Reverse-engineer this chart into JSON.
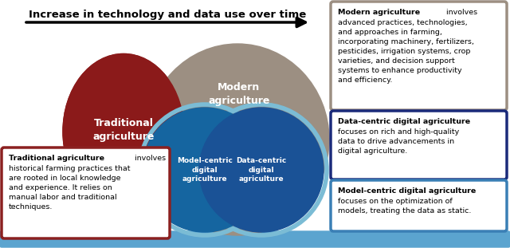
{
  "title_arrow": "Increase in technology and data use over time",
  "bg_color": "#ffffff",
  "trad_color": "#8B1A1A",
  "modern_color": "#9C8F82",
  "model_color": "#1565A0",
  "data_color": "#1A5296",
  "blue_outline_color": "#7BBCD5",
  "trad_label": "Traditional\nagriculture",
  "modern_label": "Modern\nagriculture",
  "model_label": "Model-centric\ndigital\nagriculture",
  "data_label": "Data-centric\ndigital\nagriculture",
  "box_trad_border": "#8B2020",
  "box_modern_border": "#9C8F82",
  "box_data_border": "#1A2A7A",
  "box_model_border": "#3A7FB5",
  "bottom_bar_color": "#5BA4CF",
  "modern_bold": "Modern agriculture",
  "modern_normal": " involves\nadvanced practices, technologies,\nand approaches in farming,\nincorporating machinery, fertilizers,\npesticides, irrigation systems, crop\nvarieties, and decision support\nsystems to enhance productivity\nand efficiency.",
  "data_bold": "Data-centric digital agriculture",
  "data_normal": "\nfocuses on rich and high-quality\ndata to drive advancements in\ndigital agriculture.",
  "model_bold": "Model-centric digital agriculture",
  "model_normal": "\nfocuses on the optimization of\nmodels, treating the data as static.",
  "trad_bold": "Traditional agriculture",
  "trad_normal": " involves\nhistorical farming practices that\nare rooted in local knowledge\nand experience. It relies on\nmanual labor and traditional\ntechniques."
}
